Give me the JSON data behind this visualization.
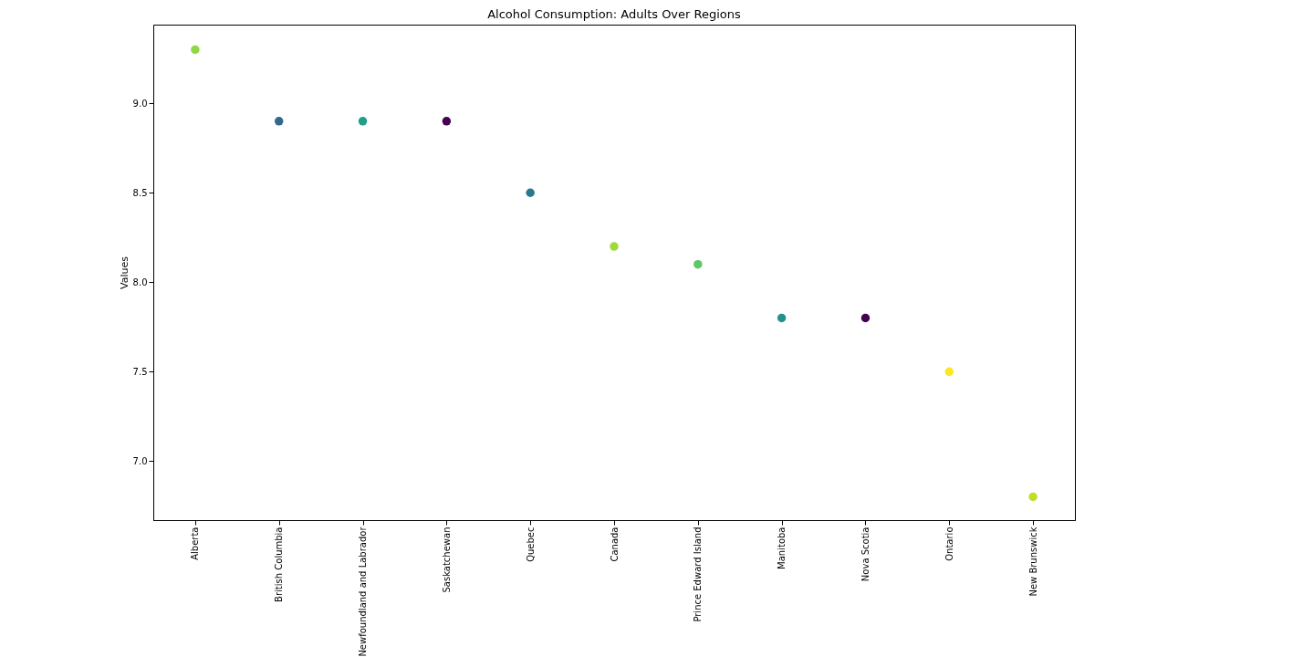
{
  "chart_data": {
    "type": "scatter",
    "title": "Alcohol Consumption: Adults Over Regions",
    "ylabel": "Values",
    "categories": [
      "Alberta",
      "British Columbia",
      "Newfoundland and Labrador",
      "Saskatchewan",
      "Quebec",
      "Canada",
      "Prince Edward Island",
      "Manitoba",
      "Nova Scotia",
      "Ontario",
      "New Brunswick"
    ],
    "values": [
      9.3,
      8.9,
      8.9,
      8.9,
      8.5,
      8.2,
      8.1,
      7.8,
      7.8,
      7.5,
      6.8
    ],
    "colors": [
      "#8fd744",
      "#31688e",
      "#1f9e89",
      "#440154",
      "#2a788e",
      "#a0da39",
      "#5ec962",
      "#21918c",
      "#440154",
      "#fde725",
      "#bddf26"
    ],
    "ylim": [
      6.67,
      9.44
    ],
    "yticks": [
      {
        "value": 7,
        "label": "7.0"
      },
      7.5,
      {
        "value": 8,
        "label": "8.0"
      },
      8.5,
      {
        "value": 9,
        "label": "9.0"
      }
    ],
    "grid": false,
    "legend": false,
    "marker": "circle"
  }
}
